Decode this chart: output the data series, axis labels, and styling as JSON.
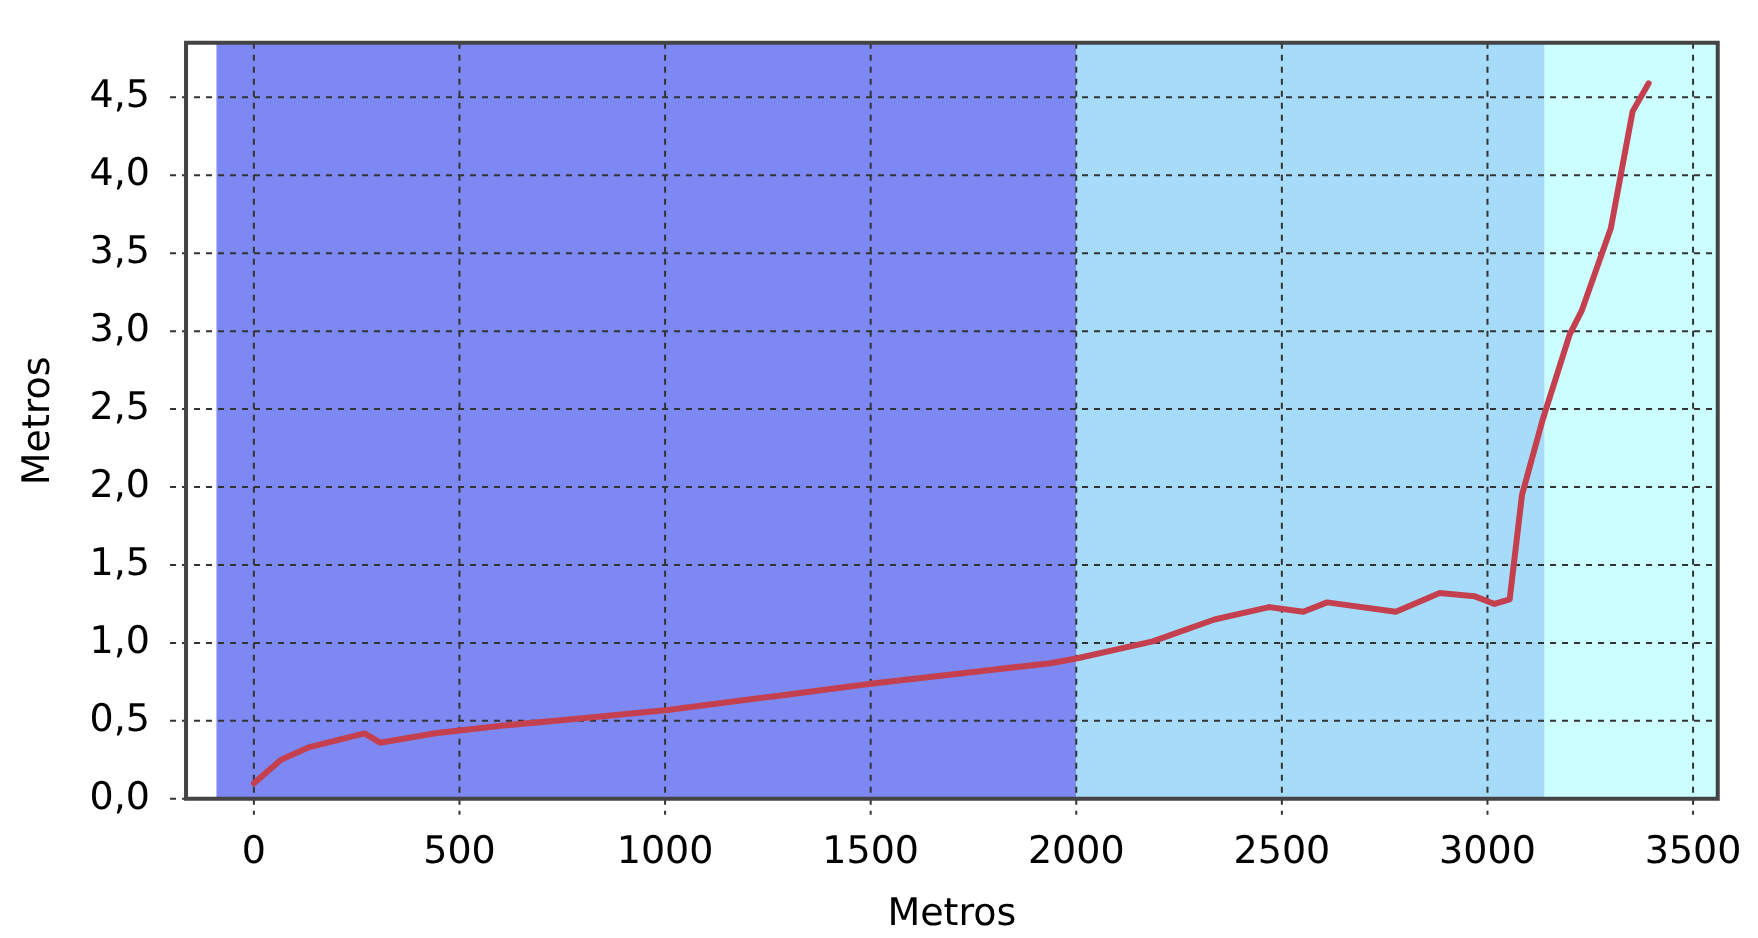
{
  "chart_data": {
    "type": "line",
    "xlabel": "Metros",
    "ylabel": "Metros",
    "series": [
      {
        "color": "#c4404f",
        "x": [
          0,
          66,
          133,
          269,
          307,
          441,
          607,
          773,
          1006,
          1272,
          1505,
          1771,
          1937,
          2000,
          2186,
          2336,
          2469,
          2552,
          2610,
          2777,
          2884,
          2968,
          3017,
          3054,
          3084,
          3134,
          3200,
          3229,
          3300,
          3353,
          3392
        ],
        "values": [
          0.1,
          0.25,
          0.33,
          0.42,
          0.36,
          0.42,
          0.47,
          0.51,
          0.57,
          0.66,
          0.74,
          0.82,
          0.87,
          0.9,
          1.01,
          1.15,
          1.23,
          1.2,
          1.26,
          1.2,
          1.32,
          1.3,
          1.25,
          1.28,
          1.95,
          2.43,
          2.98,
          3.13,
          3.66,
          4.41,
          4.59
        ]
      }
    ],
    "xlim": [
      -165,
      3560
    ],
    "ylim": [
      0,
      4.85
    ],
    "xticks": [
      0,
      500,
      1000,
      1500,
      2000,
      2500,
      3000,
      3500
    ],
    "yticks": [
      {
        "value": 0,
        "label": "0,0"
      },
      {
        "value": 0.5,
        "label": "0,5"
      },
      {
        "value": 1,
        "label": "1,0"
      },
      {
        "value": 1.5,
        "label": "1,5"
      },
      {
        "value": 2,
        "label": "2,0"
      },
      {
        "value": 2.5,
        "label": "2,5"
      },
      {
        "value": 3,
        "label": "3,0"
      },
      {
        "value": 3.5,
        "label": "3,5"
      },
      {
        "value": 4,
        "label": "4,0"
      },
      {
        "value": 4.5,
        "label": "4,5"
      }
    ],
    "bands": [
      {
        "axis": "x",
        "from": -91,
        "to": 2000,
        "color": "#7d88f2"
      },
      {
        "axis": "x",
        "from": 2000,
        "to": 3139,
        "color": "#a6dcfa"
      },
      {
        "axis": "x",
        "from": 3139,
        "to": 3560,
        "color": "#ccffff"
      }
    ],
    "grid": true,
    "marker": "none",
    "line_style": "solid"
  }
}
